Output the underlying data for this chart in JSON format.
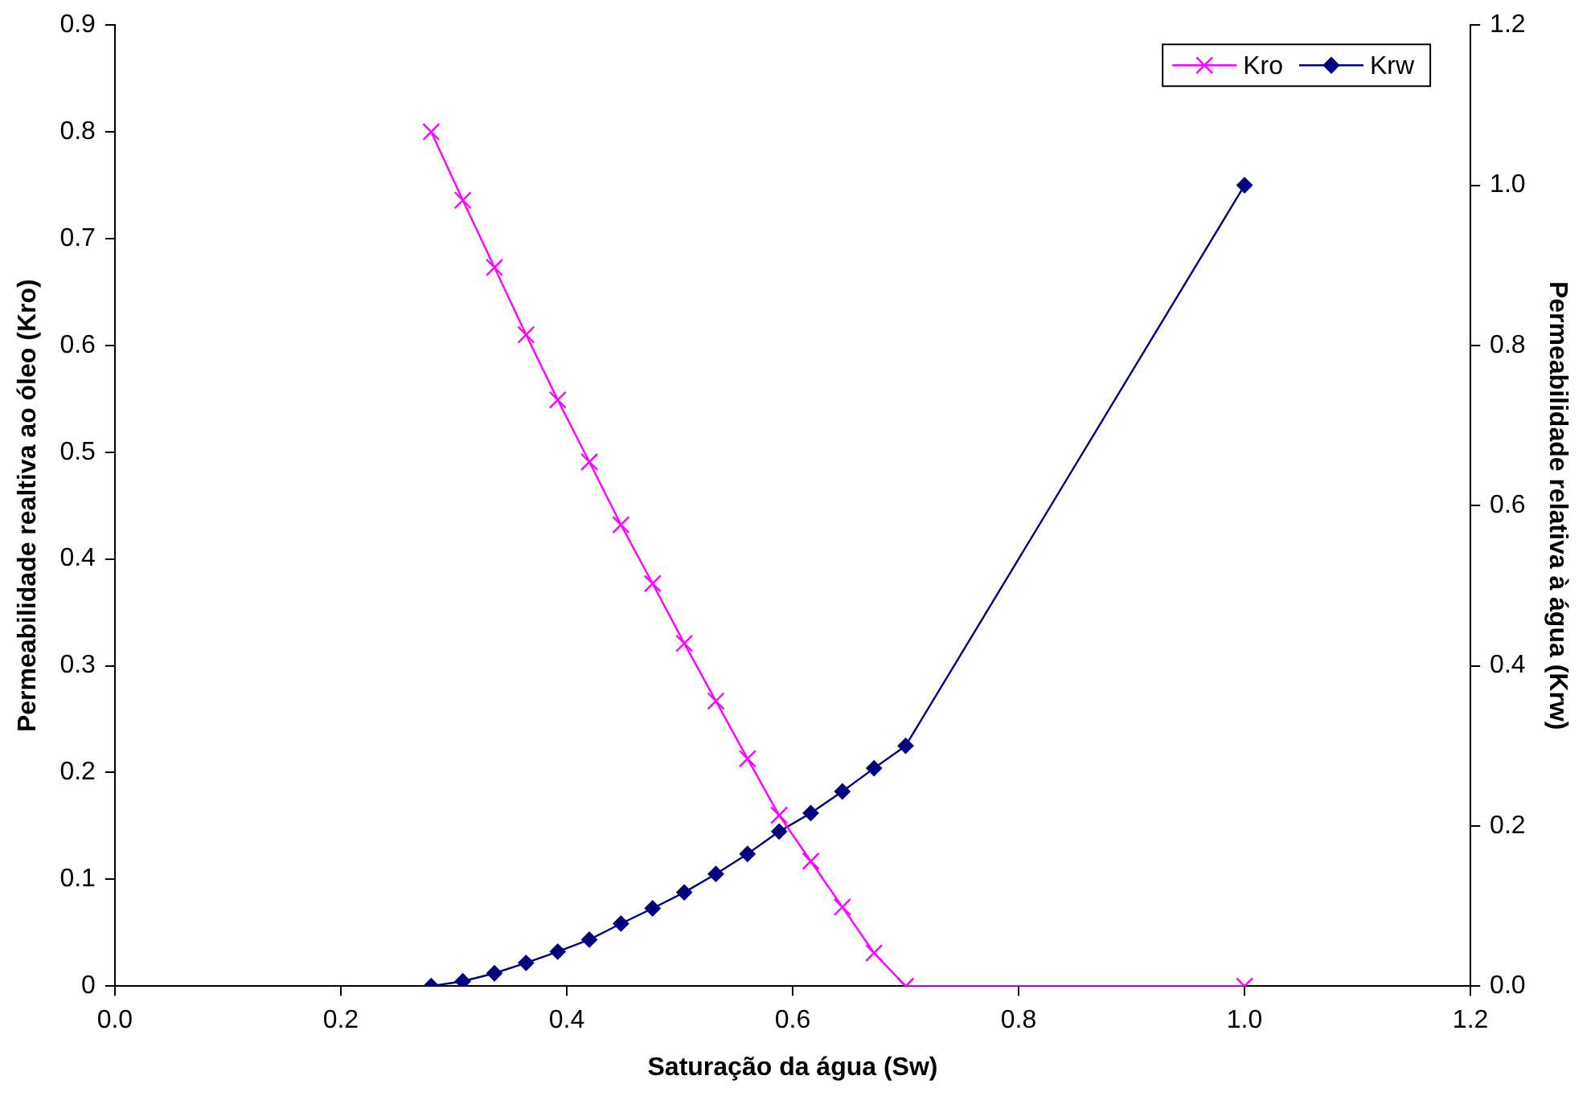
{
  "chart_data": {
    "type": "line",
    "xlabel": "Saturação da água (Sw)",
    "ylabel": "Permeabilidade realtiva ao óleo (Kro)",
    "y2label": "Permeabilidade relativa à água (Krw)",
    "xlim": [
      0,
      1.2
    ],
    "xticks": [
      {
        "value": 0,
        "label": "0.0"
      },
      {
        "value": 0.2,
        "label": "0.2"
      },
      {
        "value": 0.4,
        "label": "0.4"
      },
      {
        "value": 0.6,
        "label": "0.6"
      },
      {
        "value": 0.8,
        "label": "0.8"
      },
      {
        "value": 1,
        "label": "1.0"
      },
      {
        "value": 1.2,
        "label": "1.2"
      }
    ],
    "ylim": [
      0,
      0.9
    ],
    "yticks": [
      0,
      0.1,
      0.2,
      0.3,
      0.4,
      0.5,
      0.6,
      0.7,
      0.8,
      0.9
    ],
    "y2lim": [
      0,
      1.2
    ],
    "y2ticks": [
      {
        "value": 0,
        "label": "0.0"
      },
      {
        "value": 0.2,
        "label": "0.2"
      },
      {
        "value": 0.4,
        "label": "0.4"
      },
      {
        "value": 0.6,
        "label": "0.6"
      },
      {
        "value": 0.8,
        "label": "0.8"
      },
      {
        "value": 1,
        "label": "1.0"
      },
      {
        "value": 1.2,
        "label": "1.2"
      }
    ],
    "x": [
      0.28,
      0.308,
      0.336,
      0.364,
      0.392,
      0.42,
      0.448,
      0.476,
      0.504,
      0.532,
      0.56,
      0.588,
      0.616,
      0.644,
      0.672,
      0.7,
      1.0
    ],
    "series": [
      {
        "name": "Kro",
        "color": "#ff00ff",
        "marker": "cross",
        "values": [
          0.8,
          0.736,
          0.673,
          0.61,
          0.549,
          0.491,
          0.432,
          0.377,
          0.321,
          0.267,
          0.213,
          0.16,
          0.117,
          0.074,
          0.031,
          0,
          0
        ]
      },
      {
        "name": "Krw",
        "color": "#000080",
        "marker": "diamond",
        "axis": "y2",
        "values": [
          0,
          0.006,
          0.016,
          0.029,
          0.043,
          0.058,
          0.078,
          0.097,
          0.117,
          0.14,
          0.165,
          0.193,
          0.216,
          0.243,
          0.272,
          0.3,
          1.0
        ]
      }
    ],
    "legend": "top right",
    "grid": false
  }
}
